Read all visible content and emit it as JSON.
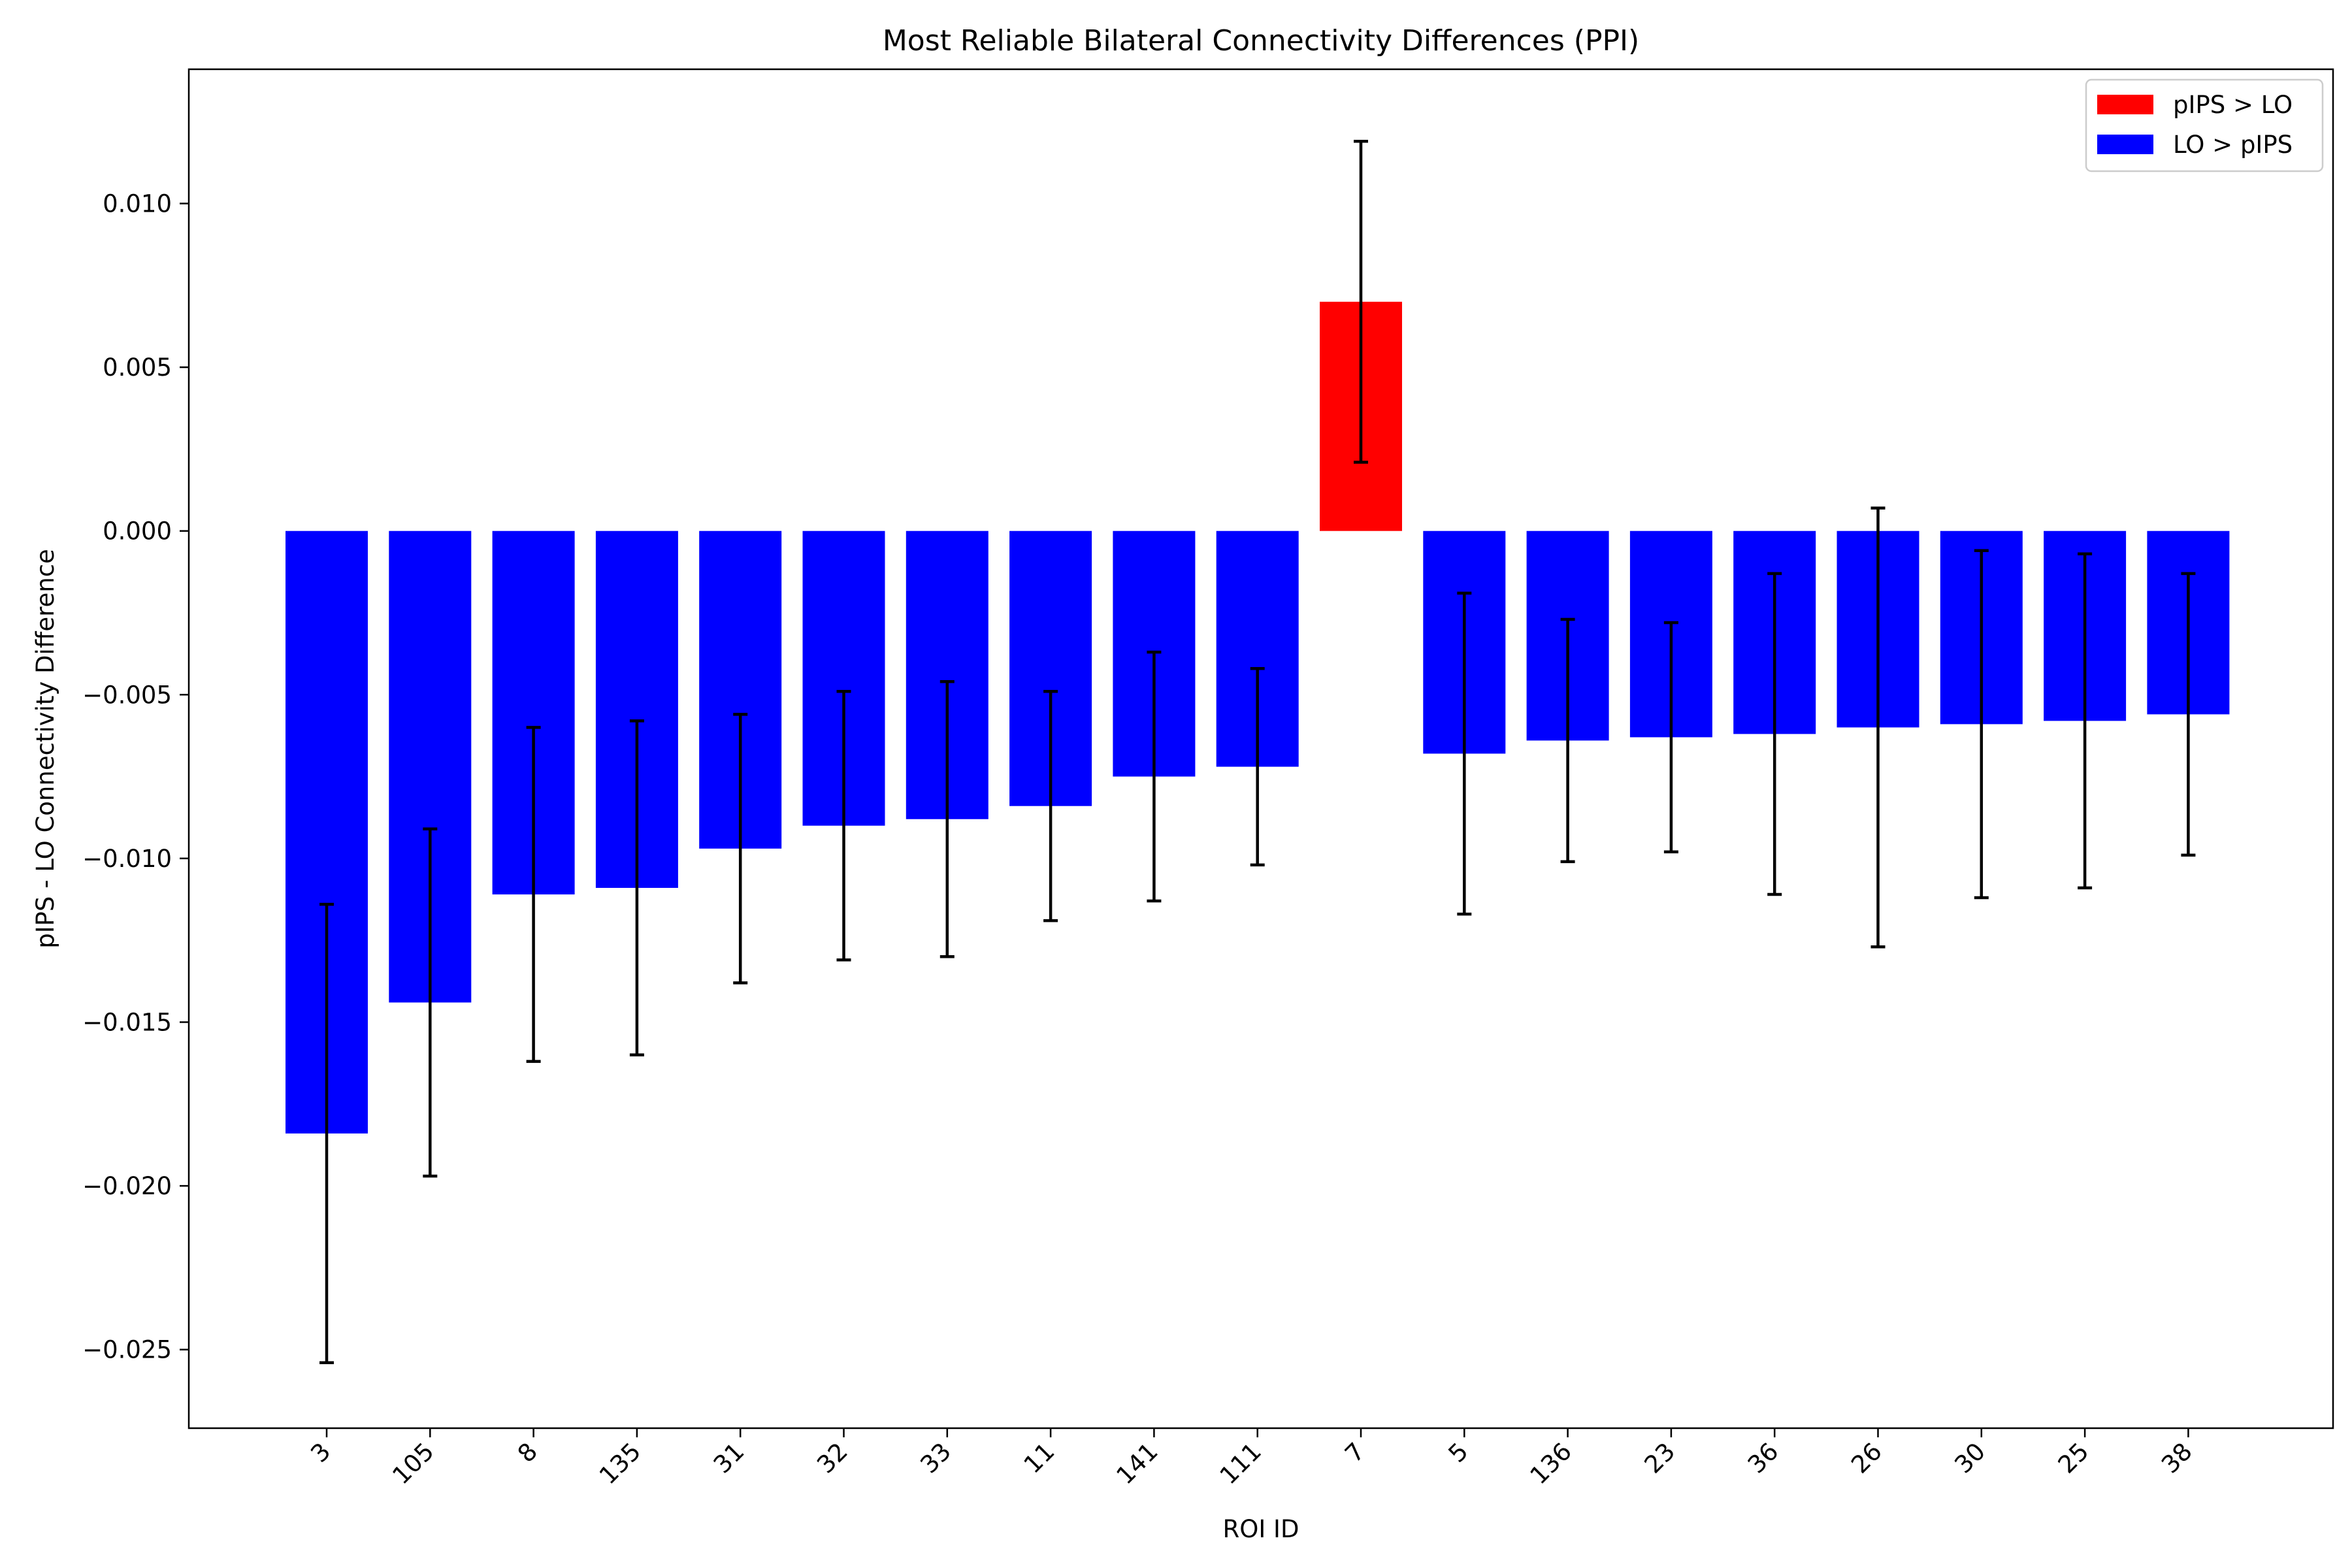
{
  "chart_data": {
    "type": "bar",
    "title": "Most Reliable Bilateral Connectivity Differences (PPI)",
    "xlabel": "ROI ID",
    "ylabel": "pIPS - LO Connectivity Difference",
    "categories": [
      "3",
      "105",
      "8",
      "135",
      "31",
      "32",
      "33",
      "11",
      "141",
      "111",
      "7",
      "5",
      "136",
      "23",
      "36",
      "26",
      "30",
      "25",
      "38"
    ],
    "values": [
      -0.0184,
      -0.0144,
      -0.0111,
      -0.0109,
      -0.0097,
      -0.009,
      -0.0088,
      -0.0084,
      -0.0075,
      -0.0072,
      0.007,
      -0.0068,
      -0.0064,
      -0.0063,
      -0.0062,
      -0.006,
      -0.0059,
      -0.0058,
      -0.0056
    ],
    "errors": [
      0.007,
      0.0053,
      0.0051,
      0.0051,
      0.0041,
      0.0041,
      0.0042,
      0.0035,
      0.0038,
      0.003,
      0.0049,
      0.0049,
      0.0037,
      0.0035,
      0.0049,
      0.0067,
      0.0053,
      0.0051,
      0.0043
    ],
    "ylim": [
      -0.0274,
      0.0141
    ],
    "yticks": [
      {
        "value": 0.01,
        "label": "0.010"
      },
      {
        "value": 0.005,
        "label": "0.005"
      },
      {
        "value": 0.0,
        "label": "0.000"
      },
      {
        "value": -0.005,
        "label": "−0.005"
      },
      {
        "value": -0.01,
        "label": "−0.010"
      },
      {
        "value": -0.015,
        "label": "−0.015"
      },
      {
        "value": -0.02,
        "label": "−0.020"
      },
      {
        "value": -0.025,
        "label": "−0.025"
      }
    ],
    "grid": false,
    "legend": {
      "placement": "top-right",
      "entries": [
        {
          "label": "pIPS > LO",
          "color": "#ff0000"
        },
        {
          "label": "LO > pIPS",
          "color": "#0000ff"
        }
      ]
    },
    "colors": {
      "positive": "#ff0000",
      "negative": "#0000ff",
      "error_bar": "#000000"
    }
  }
}
